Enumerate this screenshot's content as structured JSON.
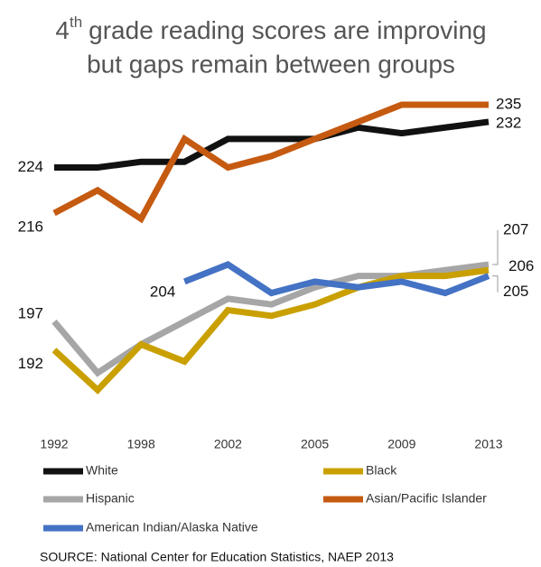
{
  "chart_data": {
    "type": "line",
    "title": [
      "4",
      "th",
      "grade reading scores are improving",
      "but gaps remain between groups"
    ],
    "categories": [
      "1992",
      null,
      "1998",
      null,
      "2002",
      null,
      "2005",
      null,
      "2009",
      null,
      "2013"
    ],
    "series": [
      {
        "name": "White",
        "color": "#111111",
        "values": [
          224,
          224,
          225,
          225,
          229,
          229,
          229,
          231,
          230,
          231,
          232
        ]
      },
      {
        "name": "Black",
        "color": "#c9a000",
        "values": [
          192,
          185,
          193,
          190,
          199,
          198,
          200,
          203,
          205,
          205,
          206
        ]
      },
      {
        "name": "Hispanic",
        "color": "#a6a6a6",
        "values": [
          197,
          188,
          193,
          197,
          201,
          200,
          203,
          205,
          205,
          206,
          207
        ]
      },
      {
        "name": "Asian/Pacific Islander",
        "color": "#c55a11",
        "values": [
          216,
          220,
          215,
          229,
          224,
          226,
          229,
          232,
          235,
          235,
          235
        ]
      },
      {
        "name": "American Indian/Alaska Native",
        "color": "#4472c4",
        "values": [
          null,
          null,
          null,
          204,
          207,
          202,
          204,
          203,
          204,
          202,
          205
        ]
      }
    ],
    "source": "SOURCE: National Center for Education Statistics, NAEP 2013"
  }
}
